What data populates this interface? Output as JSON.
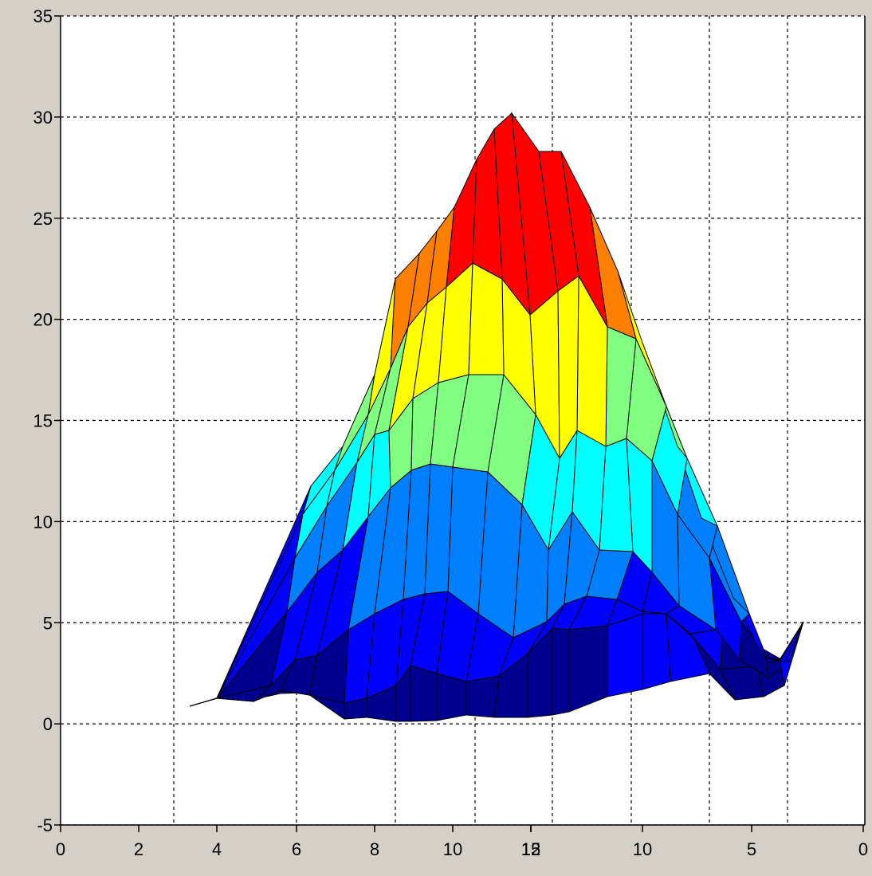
{
  "chart_data": {
    "type": "surface3d",
    "grid": true,
    "z_axis": {
      "ticks": [
        35,
        30,
        25,
        20,
        15,
        10,
        5,
        0,
        -5
      ],
      "range": [
        -5,
        35
      ]
    },
    "x_axis_left": {
      "ticks": [
        0,
        2,
        4,
        6,
        8,
        10,
        12
      ]
    },
    "y_axis_right": {
      "ticks": [
        15,
        10,
        5,
        0
      ]
    },
    "peak_z": 30.7,
    "colormap": "jet",
    "colors": {
      "background": "#d4d0c8",
      "axes_face": "#ffffff",
      "grid": "#000000",
      "edges": "#000000"
    },
    "surface_colormap": [
      "#00008f",
      "#0000ff",
      "#0080ff",
      "#00ffff",
      "#80ff80",
      "#ffff00",
      "#ff8000",
      "#ff0000",
      "#800000"
    ]
  }
}
